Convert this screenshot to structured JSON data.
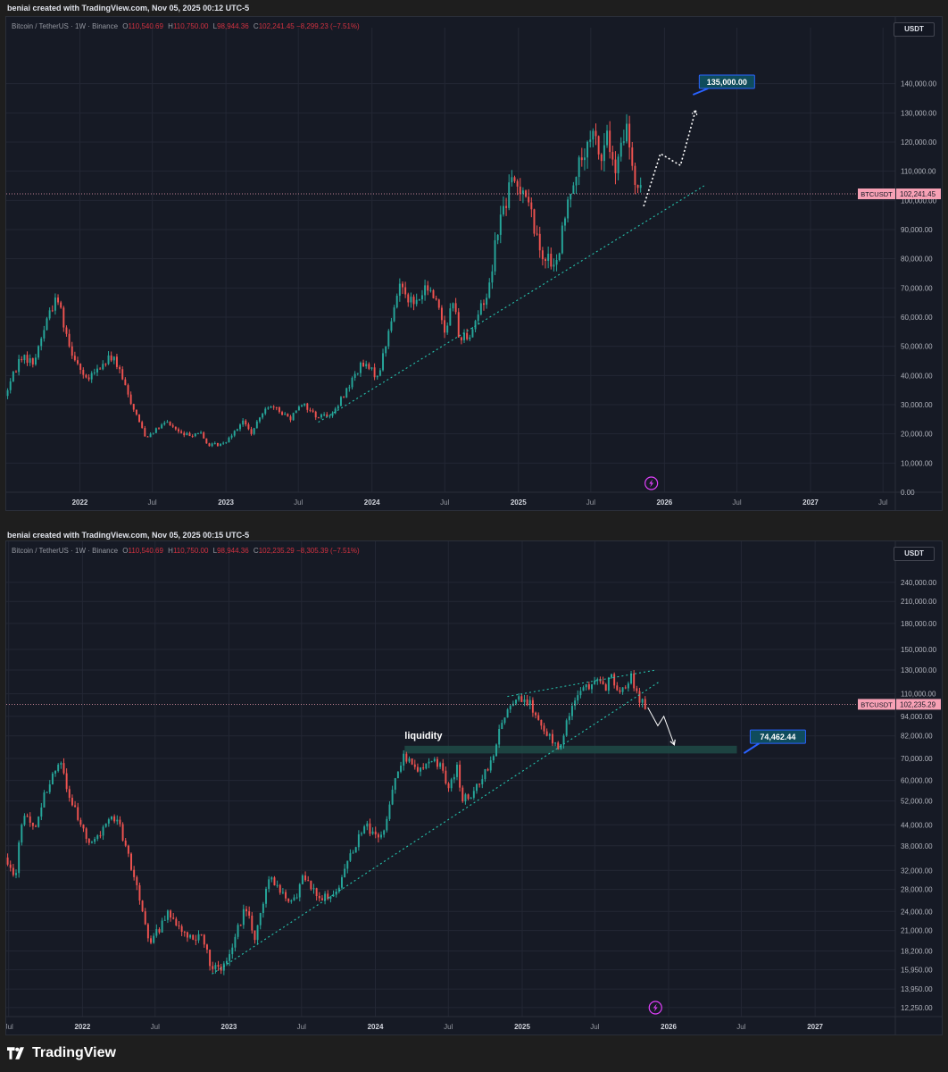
{
  "charts": [
    {
      "caption": "beniai created with TradingView.com, Nov 05, 2025 00:12 UTC-5",
      "header": {
        "symbol": "Bitcoin / TetherUS · 1W · Binance",
        "o_label": "O",
        "o_value": "110,540.69",
        "h_label": "H",
        "h_value": "110,750.00",
        "l_label": "L",
        "l_value": "98,944.36",
        "c_label": "C",
        "c_value": "102,241.45",
        "change": "−8,299.23 (−7.51%)"
      },
      "currency": "USDT",
      "price_tag_symbol": "BTCUSDT",
      "price_tag_value": "102,241.45",
      "target_label": "135,000.00"
    },
    {
      "caption": "beniai created with TradingView.com, Nov 05, 2025 00:15 UTC-5",
      "header": {
        "symbol": "Bitcoin / TetherUS · 1W · Binance",
        "o_label": "O",
        "o_value": "110,540.69",
        "h_label": "H",
        "h_value": "110,750.00",
        "l_label": "L",
        "l_value": "98,944.36",
        "c_label": "C",
        "c_value": "102,235.29",
        "change": "−8,305.39 (−7.51%)"
      },
      "currency": "USDT",
      "price_tag_symbol": "BTCUSDT",
      "price_tag_value": "102,235.29",
      "target_label": "74,462.44",
      "zone_label": "liquidity"
    }
  ],
  "footer": {
    "brand": "TradingView"
  },
  "colors": {
    "up": "#26a69a",
    "down": "#ef5350",
    "price_tag": "#f7a1b5",
    "target_box": "#0f4c5c",
    "target_border": "#2962ff",
    "background": "#161a25"
  },
  "chart_data": [
    {
      "type": "candlestick",
      "title": "Bitcoin / TetherUS · 1W · Binance",
      "y_scale": "linear",
      "ylim": [
        0,
        150000
      ],
      "y_ticks": [
        "140,000.00",
        "130,000.00",
        "120,000.00",
        "110,000.00",
        "100,000.00",
        "90,000.00",
        "80,000.00",
        "70,000.00",
        "60,000.00",
        "50,000.00",
        "40,000.00",
        "30,000.00",
        "20,000.00",
        "10,000.00",
        "0.00"
      ],
      "y_tick_values": [
        140000,
        130000,
        120000,
        110000,
        100000,
        90000,
        80000,
        70000,
        60000,
        50000,
        40000,
        30000,
        20000,
        10000,
        0
      ],
      "x_ticks": [
        "2022",
        "Jul",
        "2023",
        "Jul",
        "2024",
        "Jul",
        "2025",
        "Jul",
        "2026",
        "Jul",
        "2027",
        "Jul"
      ],
      "x_tick_dates": [
        "2022-01-01",
        "2022-07-01",
        "2023-01-01",
        "2023-07-01",
        "2024-01-01",
        "2024-07-01",
        "2025-01-01",
        "2025-07-01",
        "2026-01-01",
        "2026-07-01",
        "2027-01-01",
        "2027-07-01"
      ],
      "xlim": [
        "2021-07-01",
        "2027-08-01"
      ],
      "last_price": 102241.45,
      "trendline": {
        "from": [
          "2023-08-20",
          24000
        ],
        "to": [
          "2026-04-10",
          105000
        ]
      },
      "projection_path": [
        [
          "2025-11-10",
          98000
        ],
        [
          "2025-12-22",
          116000
        ],
        [
          "2026-02-10",
          112000
        ],
        [
          "2026-03-20",
          131000
        ]
      ],
      "target": {
        "date": "2026-03-20",
        "price": 135000,
        "label": "135,000.00"
      },
      "price_path": [
        [
          "2021-07-01",
          33000
        ],
        [
          "2021-08-10",
          47000
        ],
        [
          "2021-09-10",
          44000
        ],
        [
          "2021-10-20",
          62000
        ],
        [
          "2021-11-10",
          67000
        ],
        [
          "2021-12-10",
          50000
        ],
        [
          "2022-01-20",
          38000
        ],
        [
          "2022-03-28",
          47000
        ],
        [
          "2022-05-15",
          30000
        ],
        [
          "2022-06-18",
          19000
        ],
        [
          "2022-08-10",
          24000
        ],
        [
          "2022-09-20",
          19500
        ],
        [
          "2022-11-01",
          20500
        ],
        [
          "2022-11-20",
          16000
        ],
        [
          "2022-12-30",
          16600
        ],
        [
          "2023-02-15",
          24500
        ],
        [
          "2023-03-10",
          20000
        ],
        [
          "2023-04-15",
          30000
        ],
        [
          "2023-06-15",
          25500
        ],
        [
          "2023-07-10",
          31000
        ],
        [
          "2023-08-20",
          26000
        ],
        [
          "2023-10-01",
          27000
        ],
        [
          "2023-11-01",
          35000
        ],
        [
          "2023-12-10",
          44000
        ],
        [
          "2024-01-20",
          40000
        ],
        [
          "2024-02-28",
          62000
        ],
        [
          "2024-03-14",
          72000
        ],
        [
          "2024-04-20",
          64000
        ],
        [
          "2024-05-20",
          70000
        ],
        [
          "2024-06-15",
          66000
        ],
        [
          "2024-07-05",
          55000
        ],
        [
          "2024-07-28",
          68000
        ],
        [
          "2024-08-05",
          53000
        ],
        [
          "2024-09-05",
          54000
        ],
        [
          "2024-10-01",
          63000
        ],
        [
          "2024-10-20",
          68000
        ],
        [
          "2024-11-12",
          90000
        ],
        [
          "2024-12-17",
          106000
        ],
        [
          "2025-01-20",
          104000
        ],
        [
          "2025-02-25",
          84000
        ],
        [
          "2025-04-07",
          76000
        ],
        [
          "2025-05-20",
          108000
        ],
        [
          "2025-07-14",
          122000
        ],
        [
          "2025-08-01",
          114000
        ],
        [
          "2025-08-14",
          124000
        ],
        [
          "2025-09-01",
          108000
        ],
        [
          "2025-10-06",
          126000
        ],
        [
          "2025-10-12",
          111000
        ],
        [
          "2025-11-03",
          102241
        ]
      ]
    },
    {
      "type": "candlestick",
      "title": "Bitcoin / TetherUS · 1W · Binance",
      "y_scale": "log",
      "ylim": [
        11500,
        265000
      ],
      "y_ticks": [
        "240,000.00",
        "210,000.00",
        "180,000.00",
        "150,000.00",
        "130,000.00",
        "110,000.00",
        "94,000.00",
        "82,000.00",
        "70,000.00",
        "60,000.00",
        "52,000.00",
        "44,000.00",
        "38,000.00",
        "32,000.00",
        "28,000.00",
        "24,000.00",
        "21,000.00",
        "18,200.00",
        "15,950.00",
        "13,950.00",
        "12,250.00"
      ],
      "y_tick_values": [
        240000,
        210000,
        180000,
        150000,
        130000,
        110000,
        94000,
        82000,
        70000,
        60000,
        52000,
        44000,
        38000,
        32000,
        28000,
        24000,
        21000,
        18200,
        15950,
        13950,
        12250
      ],
      "x_ticks": [
        "Jul",
        "2022",
        "Jul",
        "2023",
        "Jul",
        "2024",
        "Jul",
        "2025",
        "Jul",
        "2026",
        "Jul",
        "2027"
      ],
      "x_tick_dates": [
        "2021-07-01",
        "2022-01-01",
        "2022-07-01",
        "2023-01-01",
        "2023-07-01",
        "2024-01-01",
        "2024-07-01",
        "2025-01-01",
        "2025-07-01",
        "2026-01-01",
        "2026-07-01",
        "2027-01-01"
      ],
      "xlim": [
        "2021-06-25",
        "2027-07-20"
      ],
      "last_price": 102235.29,
      "trendline_support": {
        "from": [
          "2022-11-20",
          15500
        ],
        "to": [
          "2025-12-10",
          120000
        ]
      },
      "trendline_resistance": {
        "from": [
          "2024-11-25",
          108000
        ],
        "to": [
          "2025-12-01",
          130000
        ]
      },
      "liquidity_zone": {
        "from": "2024-03-14",
        "to": "2026-06-20",
        "low": 72500,
        "high": 76500,
        "label": "liquidity"
      },
      "projection_path": [
        [
          "2025-11-10",
          100000
        ],
        [
          "2025-12-05",
          88000
        ],
        [
          "2025-12-20",
          94000
        ],
        [
          "2026-01-15",
          77000
        ]
      ],
      "target": {
        "date": "2026-07-01",
        "price": 74462.44,
        "label": "74,462.44"
      },
      "price_path": [
        [
          "2021-06-25",
          35000
        ],
        [
          "2021-07-20",
          30000
        ],
        [
          "2021-08-10",
          47000
        ],
        [
          "2021-09-10",
          44000
        ],
        [
          "2021-10-20",
          62000
        ],
        [
          "2021-11-10",
          67000
        ],
        [
          "2021-12-10",
          50000
        ],
        [
          "2022-01-20",
          38000
        ],
        [
          "2022-03-28",
          47000
        ],
        [
          "2022-05-15",
          30000
        ],
        [
          "2022-06-18",
          19000
        ],
        [
          "2022-08-10",
          24000
        ],
        [
          "2022-09-20",
          19500
        ],
        [
          "2022-11-01",
          20500
        ],
        [
          "2022-11-20",
          16000
        ],
        [
          "2022-12-30",
          16600
        ],
        [
          "2023-02-15",
          24500
        ],
        [
          "2023-03-10",
          20000
        ],
        [
          "2023-04-15",
          30000
        ],
        [
          "2023-06-15",
          25500
        ],
        [
          "2023-07-10",
          31000
        ],
        [
          "2023-08-20",
          26000
        ],
        [
          "2023-10-01",
          27000
        ],
        [
          "2023-11-01",
          35000
        ],
        [
          "2023-12-10",
          44000
        ],
        [
          "2024-01-20",
          40000
        ],
        [
          "2024-02-28",
          62000
        ],
        [
          "2024-03-14",
          72000
        ],
        [
          "2024-04-20",
          64000
        ],
        [
          "2024-05-20",
          70000
        ],
        [
          "2024-06-15",
          66000
        ],
        [
          "2024-07-05",
          55000
        ],
        [
          "2024-07-28",
          68000
        ],
        [
          "2024-08-05",
          53000
        ],
        [
          "2024-09-05",
          54000
        ],
        [
          "2024-10-01",
          63000
        ],
        [
          "2024-10-20",
          68000
        ],
        [
          "2024-11-12",
          90000
        ],
        [
          "2024-12-17",
          106000
        ],
        [
          "2025-01-20",
          104000
        ],
        [
          "2025-02-25",
          84000
        ],
        [
          "2025-04-07",
          76000
        ],
        [
          "2025-05-20",
          108000
        ],
        [
          "2025-07-14",
          122000
        ],
        [
          "2025-08-01",
          114000
        ],
        [
          "2025-08-14",
          124000
        ],
        [
          "2025-09-01",
          108000
        ],
        [
          "2025-10-06",
          126000
        ],
        [
          "2025-10-12",
          111000
        ],
        [
          "2025-11-03",
          102235
        ]
      ]
    }
  ]
}
